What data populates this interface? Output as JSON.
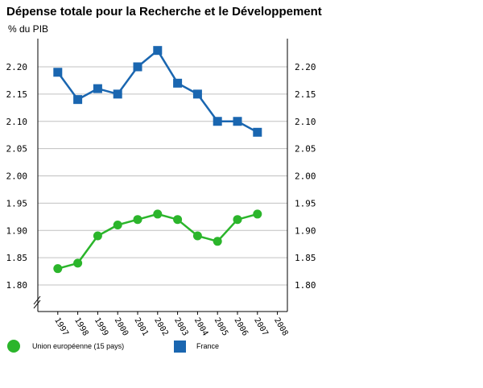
{
  "colors": {
    "eu": "#2bb52b",
    "france": "#1a66b0",
    "grid": "#c0c0c0",
    "axis": "#000000"
  },
  "chart_data": {
    "type": "line",
    "title": "Dépense totale pour la Recherche et le Développement",
    "ylabel": "% du PIB",
    "categories": [
      "1997",
      "1998",
      "1999",
      "2000",
      "2001",
      "2002",
      "2003",
      "2004",
      "2005",
      "2006",
      "2007",
      "2008"
    ],
    "ylim": [
      1.75,
      2.25
    ],
    "yticks": [
      "1.80",
      "1.85",
      "1.90",
      "1.95",
      "2.00",
      "2.05",
      "2.10",
      "2.15",
      "2.20"
    ],
    "grid": true,
    "legend_position": "bottom",
    "series": [
      {
        "name": "Union européenne (15 pays)",
        "marker": "circle",
        "color": "#2bb52b",
        "values": [
          1.83,
          1.84,
          1.89,
          1.91,
          1.92,
          1.93,
          1.92,
          1.89,
          1.88,
          1.92,
          1.93,
          null
        ]
      },
      {
        "name": "France",
        "marker": "square",
        "color": "#1a66b0",
        "values": [
          2.19,
          2.14,
          2.16,
          2.15,
          2.2,
          2.23,
          2.17,
          2.15,
          2.1,
          2.1,
          2.08,
          null
        ]
      }
    ]
  }
}
